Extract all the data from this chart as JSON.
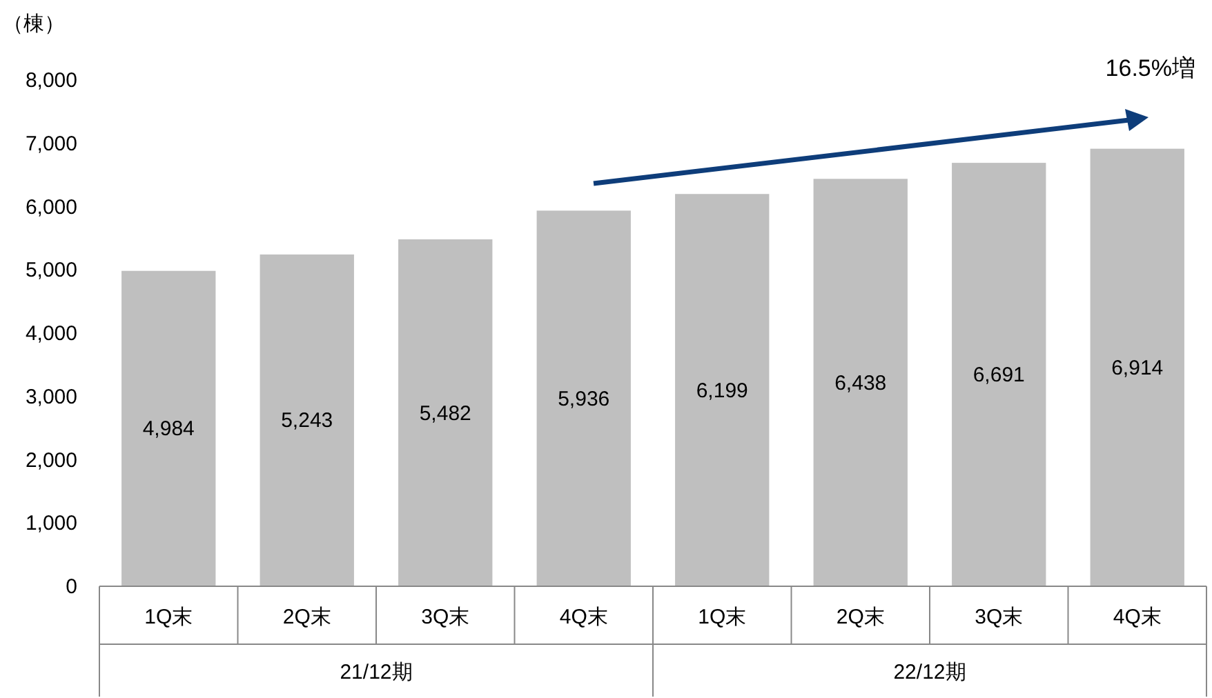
{
  "chart_data": {
    "type": "bar",
    "ylabel": "（棟）",
    "categories": [
      "1Q末",
      "2Q末",
      "3Q末",
      "4Q末",
      "1Q末",
      "2Q末",
      "3Q末",
      "4Q末"
    ],
    "values": [
      4984,
      5243,
      5482,
      5936,
      6199,
      6438,
      6691,
      6914
    ],
    "value_labels": [
      "4,984",
      "5,243",
      "5,482",
      "5,936",
      "6,199",
      "6,438",
      "6,691",
      "6,914"
    ],
    "color": "#bfbfbf",
    "ylim": [
      0,
      8000
    ],
    "yticks": [
      0,
      {
        "value": 1000,
        "label": "1,000"
      },
      {
        "value": 2000,
        "label": "2,000"
      },
      {
        "value": 3000,
        "label": "3,000"
      },
      {
        "value": 4000,
        "label": "4,000"
      },
      {
        "value": 5000,
        "label": "5,000"
      },
      {
        "value": 6000,
        "label": "6,000"
      },
      {
        "value": 7000,
        "label": "7,000"
      },
      {
        "value": 8000,
        "label": "8,000"
      }
    ],
    "grid": false,
    "annotations": [
      "16.5%増",
      "21/12期",
      "22/12期"
    ]
  }
}
